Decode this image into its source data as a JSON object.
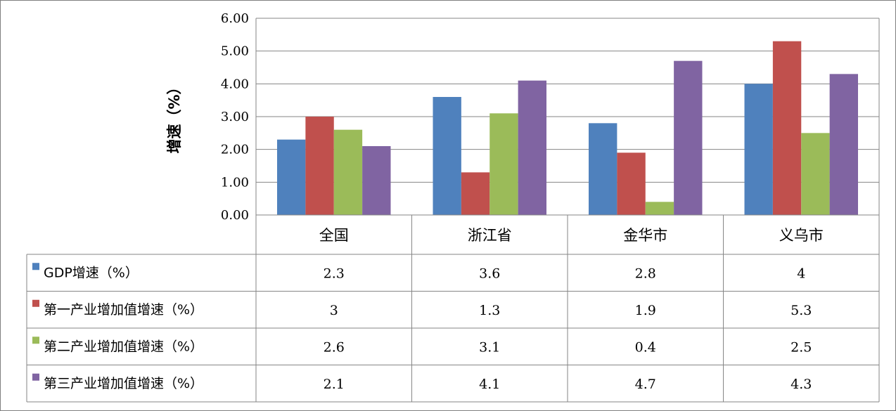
{
  "chart_data": {
    "type": "bar",
    "ylabel": "增速（%）",
    "ylim": [
      0,
      6
    ],
    "yticks": [
      "0.00",
      "1.00",
      "2.00",
      "3.00",
      "4.00",
      "5.00",
      "6.00"
    ],
    "grid": true,
    "legend": "data-table-left",
    "categories": [
      "全国",
      "浙江省",
      "金华市",
      "义乌市"
    ],
    "series": [
      {
        "name": "GDP增速（%）",
        "color": "#4f81bd",
        "values": [
          2.3,
          3.6,
          2.8,
          4
        ],
        "labels": [
          "2.3",
          "3.6",
          "2.8",
          "4"
        ]
      },
      {
        "name": "第一产业增加值增速（%）",
        "color": "#c0504d",
        "values": [
          3,
          1.3,
          1.9,
          5.3
        ],
        "labels": [
          "3",
          "1.3",
          "1.9",
          "5.3"
        ]
      },
      {
        "name": "第二产业增加值增速（%）",
        "color": "#9bbb59",
        "values": [
          2.6,
          3.1,
          0.4,
          2.5
        ],
        "labels": [
          "2.6",
          "3.1",
          "0.4",
          "2.5"
        ]
      },
      {
        "name": "第三产业增加值增速（%）",
        "color": "#8064a2",
        "values": [
          2.1,
          4.1,
          4.7,
          4.3
        ],
        "labels": [
          "2.1",
          "4.1",
          "4.7",
          "4.3"
        ]
      }
    ]
  }
}
